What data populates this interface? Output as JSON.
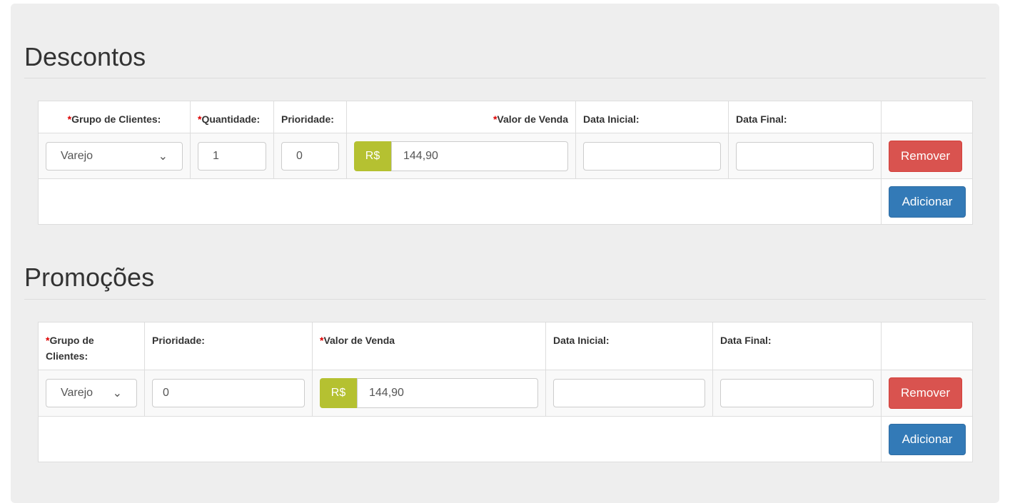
{
  "descontos": {
    "title": "Descontos",
    "headers": [
      "Grupo de Clientes:",
      "Quantidade:",
      "Prioridade:",
      "Valor de Venda",
      "Data Inicial:",
      "Data Final:"
    ],
    "row": {
      "grupo": "Varejo",
      "quantidade": "1",
      "prioridade": "0",
      "currency": "R$",
      "valor": "144,90",
      "data_inicial": "",
      "data_final": ""
    },
    "remove_label": "Remover",
    "add_label": "Adicionar"
  },
  "promocoes": {
    "title": "Promoções",
    "headers": [
      "Grupo de Clientes:",
      "Prioridade:",
      "Valor de Venda",
      "Data Inicial:",
      "Data Final:"
    ],
    "row": {
      "grupo": "Varejo",
      "prioridade": "0",
      "currency": "R$",
      "valor": "144,90",
      "data_inicial": "",
      "data_final": ""
    },
    "remove_label": "Remover",
    "add_label": "Adicionar"
  },
  "required_mark": "*"
}
